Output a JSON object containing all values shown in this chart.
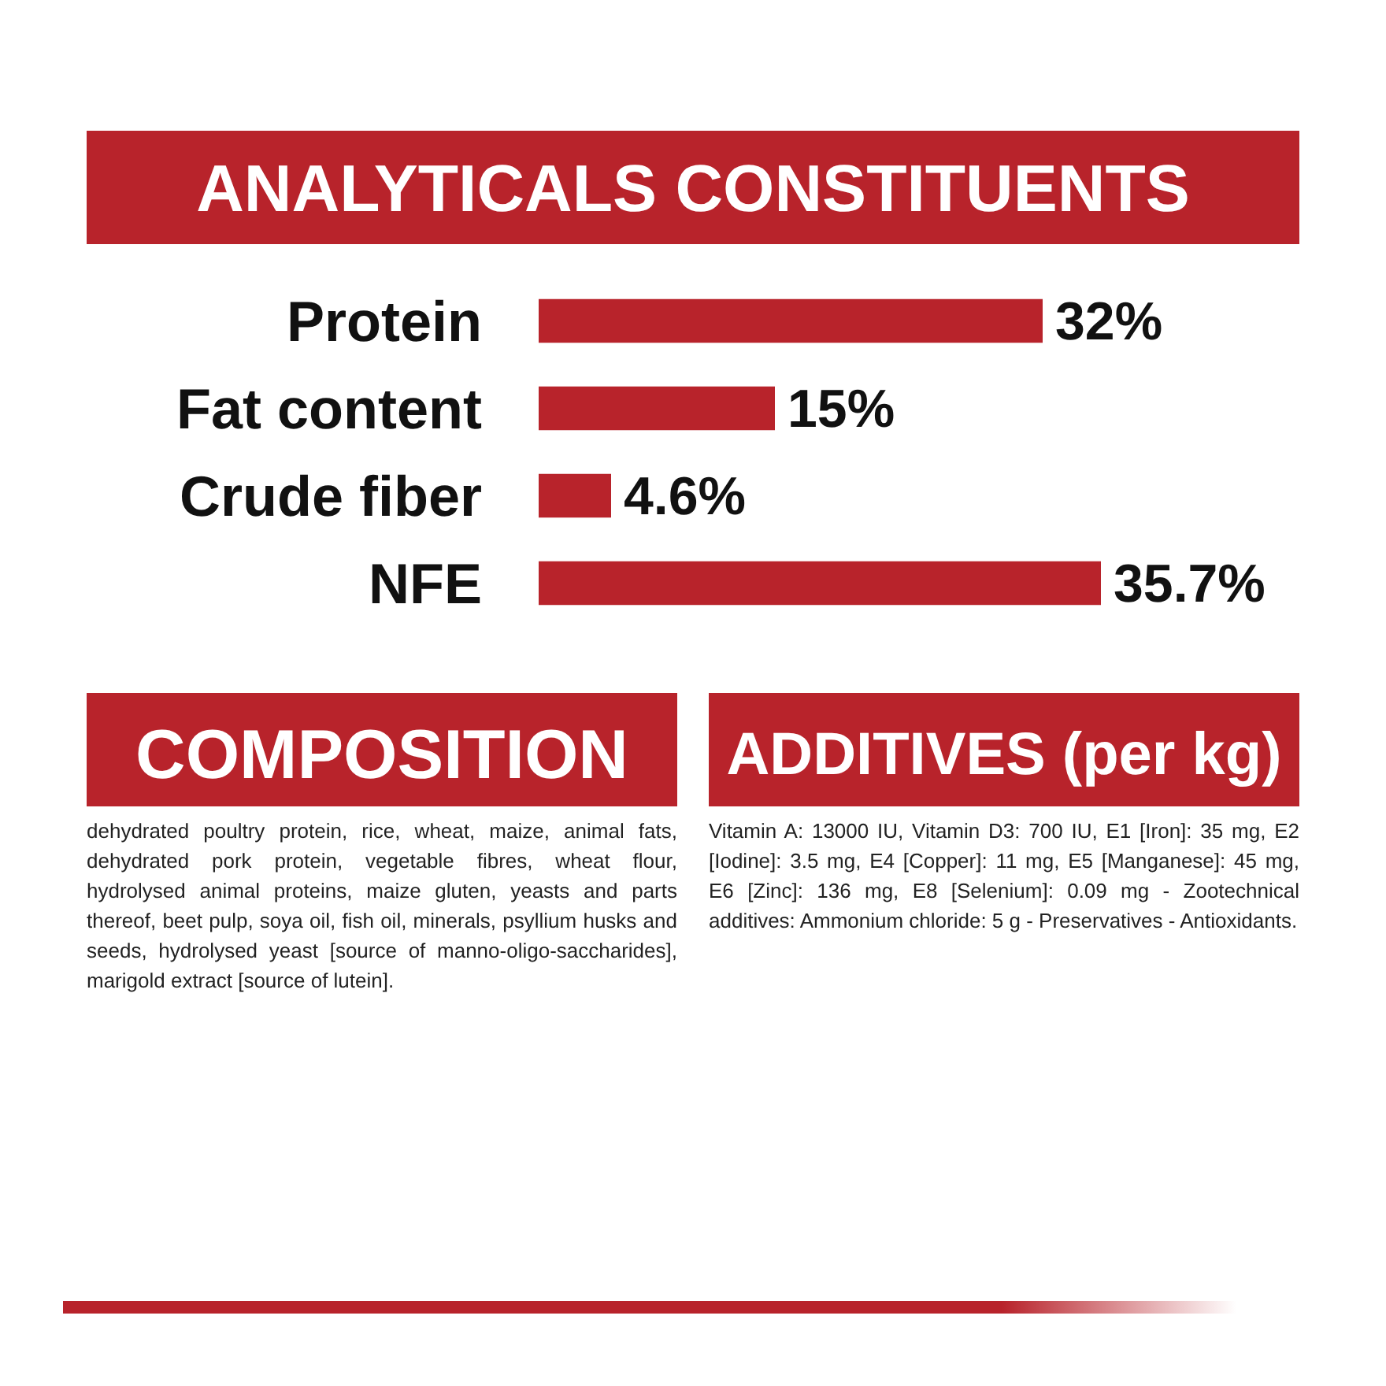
{
  "chart_data": {
    "type": "bar",
    "orientation": "horizontal",
    "title": "ANALYTICALS CONSTITUENTS",
    "categories": [
      "Protein",
      "Fat content",
      "Crude fiber",
      "NFE"
    ],
    "values": [
      32,
      15,
      4.6,
      35.7
    ],
    "value_labels": [
      "32%",
      "15%",
      "4.6%",
      "35.7%"
    ],
    "color": "#b8232b",
    "annotations": [
      "COMPOSITION",
      "dehydrated poultry protein, rice, wheat, maize, animal fats, dehydrated pork protein, vegetable fibres, wheat flour, hydrolysed animal proteins, maize gluten, yeasts and parts thereof, beet pulp, soya oil, fish oil, minerals, psyllium husks and seeds, hydrolysed yeast [source of manno-oligo-saccharides], marigold extract [source of lutein].",
      "ADDITIVES (per kg)",
      "Vitamin A: 13000 IU, Vitamin D3: 700 IU, E1 [Iron]: 35 mg, E2 [Iodine]: 3.5 mg, E4 [Copper]: 11 mg, E5 [Manganese]: 45 mg, E6 [Zinc]: 136 mg, E8 [Selenium]: 0.09 mg - Zootechnical additives: Ammonium chloride: 5 g - Preservatives - Antioxidants."
    ]
  }
}
